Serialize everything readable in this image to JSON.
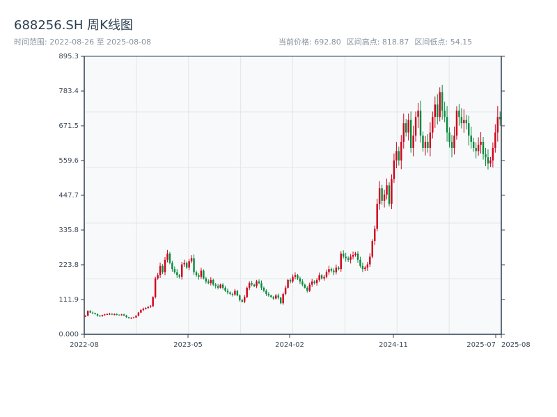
{
  "title": "688256.SH 周K线图",
  "range_text": "时间范围: 2022-08-26 至 2025-08-08",
  "stats": {
    "current": "当前价格: 692.80",
    "high": "区间高点: 818.87",
    "low": "区间低点: 54.15"
  },
  "colors": {
    "up": "#d0021b",
    "down": "#0a8a3c",
    "grid": "#e3e6ea",
    "bg": "#f7f9fb",
    "axis": "#2c3e50"
  },
  "chart_data": {
    "type": "candlestick",
    "title": "688256.SH 周K线图",
    "ylim": [
      0,
      895.3
    ],
    "yticks": [
      "0.000",
      "111.9",
      "223.8",
      "335.8",
      "447.7",
      "559.6",
      "671.5",
      "783.4",
      "895.3"
    ],
    "xticks": [
      "2022-08",
      "2023-05",
      "2024-02",
      "2024-11",
      "2025-07",
      "2025-08"
    ],
    "start": "2022-08-26",
    "end": "2025-08-08",
    "closes": [
      60,
      75,
      70,
      68,
      65,
      60,
      58,
      62,
      64,
      65,
      66,
      64,
      65,
      63,
      62,
      64,
      60,
      55,
      52,
      53,
      54,
      60,
      70,
      78,
      82,
      85,
      88,
      90,
      120,
      180,
      190,
      220,
      200,
      240,
      260,
      230,
      210,
      200,
      190,
      185,
      225,
      230,
      215,
      235,
      245,
      200,
      190,
      185,
      205,
      180,
      170,
      165,
      175,
      160,
      155,
      150,
      160,
      150,
      140,
      135,
      130,
      128,
      140,
      125,
      110,
      105,
      120,
      150,
      165,
      160,
      155,
      170,
      165,
      150,
      140,
      130,
      125,
      120,
      115,
      125,
      118,
      100,
      130,
      150,
      175,
      170,
      185,
      190,
      180,
      170,
      160,
      150,
      140,
      160,
      170,
      165,
      175,
      190,
      180,
      185,
      200,
      210,
      205,
      200,
      215,
      210,
      260,
      250,
      245,
      240,
      250,
      255,
      260,
      240,
      220,
      210,
      215,
      225,
      250,
      300,
      340,
      420,
      470,
      430,
      450,
      480,
      420,
      500,
      560,
      590,
      560,
      620,
      680,
      650,
      690,
      600,
      640,
      700,
      720,
      640,
      600,
      620,
      600,
      650,
      700,
      740,
      700,
      780,
      720,
      700,
      650,
      620,
      600,
      640,
      720,
      700,
      680,
      690,
      680,
      640,
      620,
      600,
      590,
      610,
      620,
      580,
      570,
      550,
      560,
      600,
      650,
      700,
      692.8
    ]
  }
}
